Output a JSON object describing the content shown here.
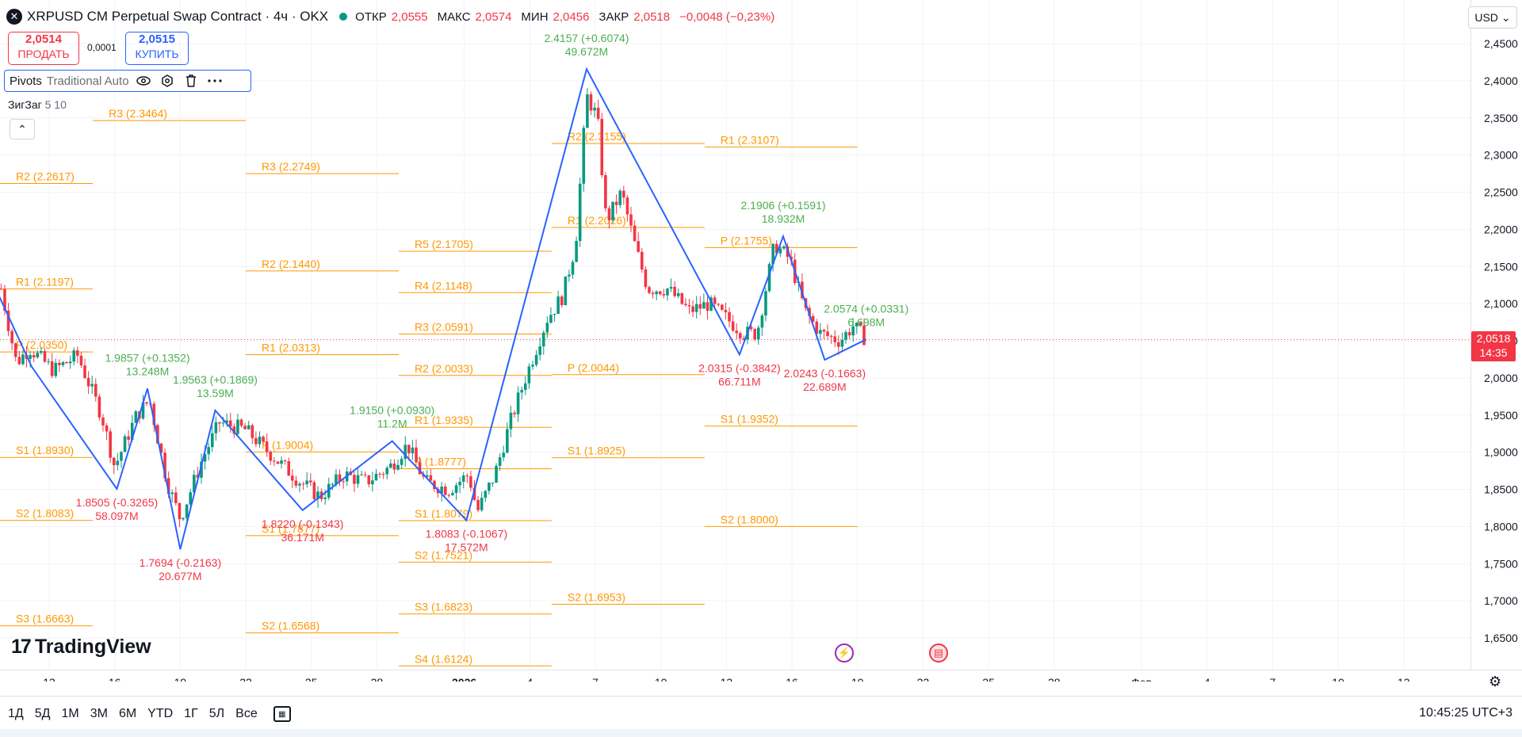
{
  "header": {
    "symbol": "XRPUSD CM Perpetual Swap Contract · 4ч · OKX",
    "ohlc": [
      {
        "label": "ОТКР",
        "value": "2,0555"
      },
      {
        "label": "МАКС",
        "value": "2,0574"
      },
      {
        "label": "МИН",
        "value": "2,0456"
      },
      {
        "label": "ЗАКР",
        "value": "2,0518"
      }
    ],
    "change": "−0,0048 (−0,23%)"
  },
  "trade": {
    "sell_price": "2,0514",
    "sell_label": "ПРОДАТЬ",
    "spread": "0,0001",
    "buy_price": "2,0515",
    "buy_label": "КУПИТЬ"
  },
  "indicators": {
    "pivots_name": "Pivots",
    "pivots_args": "Traditional Auto",
    "zigzag_name": "ЗигЗаг",
    "zigzag_args": "5 10"
  },
  "currency": "USD",
  "current_price": {
    "value": "2,0518",
    "countdown": "14:35"
  },
  "logo": "TradingView",
  "toolbar": {
    "ranges": [
      "1Д",
      "5Д",
      "1М",
      "3М",
      "6М",
      "YTD",
      "1Г",
      "5Л",
      "Все"
    ]
  },
  "clock": "10:45:25 UTC+3",
  "colors": {
    "pivot": "#ff9800",
    "zigzag": "#2962ff",
    "up": "#089981",
    "down": "#f23645",
    "label_up": "#4caf50",
    "label_down": "#f23645",
    "grid": "#f0f3fa"
  },
  "icons": [
    "eye-icon",
    "settings-icon",
    "trash-icon",
    "more-icon",
    "chevron-up-icon",
    "lightning-icon",
    "us-flag-icon",
    "calendar-icon",
    "gear-icon"
  ],
  "chart_data": {
    "type": "candlestick",
    "ylim": [
      1.62,
      2.47
    ],
    "y_ticks": [
      "2,4500",
      "2,4000",
      "2,3500",
      "2,3000",
      "2,2500",
      "2,2000",
      "2,1500",
      "2,1000",
      "2,0500",
      "2,0000",
      "1,9500",
      "1,9000",
      "1,8500",
      "1,8000",
      "1,7500",
      "1,7000",
      "1,6500"
    ],
    "y_tick_values": [
      2.45,
      2.4,
      2.35,
      2.3,
      2.25,
      2.2,
      2.15,
      2.1,
      2.05,
      2.0,
      1.95,
      1.9,
      1.85,
      1.8,
      1.75,
      1.7,
      1.65
    ],
    "x_ticks": [
      {
        "label": "13",
        "day": 0
      },
      {
        "label": "16",
        "day": 3
      },
      {
        "label": "19",
        "day": 6
      },
      {
        "label": "22",
        "day": 9
      },
      {
        "label": "25",
        "day": 12
      },
      {
        "label": "28",
        "day": 15
      },
      {
        "label": "2026",
        "day": 19
      },
      {
        "label": "4",
        "day": 22
      },
      {
        "label": "7",
        "day": 25
      },
      {
        "label": "10",
        "day": 28
      },
      {
        "label": "13",
        "day": 31
      },
      {
        "label": "16",
        "day": 34
      },
      {
        "label": "19",
        "day": 37
      },
      {
        "label": "22",
        "day": 40
      },
      {
        "label": "25",
        "day": 43
      },
      {
        "label": "28",
        "day": 46
      },
      {
        "label": "Фев",
        "day": 50
      },
      {
        "label": "4",
        "day": 53
      },
      {
        "label": "7",
        "day": 56
      },
      {
        "label": "10",
        "day": 59
      },
      {
        "label": "13",
        "day": 62
      }
    ],
    "current_price": 2.0518,
    "close_path": [
      {
        "day": -2.2,
        "price": 2.12
      },
      {
        "day": -1.5,
        "price": 2.02
      },
      {
        "day": -0.9,
        "price": 2.04
      },
      {
        "day": 0.2,
        "price": 2.01
      },
      {
        "day": 1.3,
        "price": 2.03
      },
      {
        "day": 2.4,
        "price": 1.95
      },
      {
        "day": 3.0,
        "price": 1.88
      },
      {
        "day": 4.0,
        "price": 1.95
      },
      {
        "day": 4.6,
        "price": 1.97
      },
      {
        "day": 5.4,
        "price": 1.86
      },
      {
        "day": 6.0,
        "price": 1.81
      },
      {
        "day": 7.0,
        "price": 1.89
      },
      {
        "day": 7.8,
        "price": 1.94
      },
      {
        "day": 9.0,
        "price": 1.93
      },
      {
        "day": 10.4,
        "price": 1.89
      },
      {
        "day": 11.5,
        "price": 1.86
      },
      {
        "day": 12.4,
        "price": 1.84
      },
      {
        "day": 13.5,
        "price": 1.87
      },
      {
        "day": 14.5,
        "price": 1.86
      },
      {
        "day": 15.6,
        "price": 1.88
      },
      {
        "day": 16.4,
        "price": 1.91
      },
      {
        "day": 17.2,
        "price": 1.86
      },
      {
        "day": 18.3,
        "price": 1.85
      },
      {
        "day": 19.2,
        "price": 1.87
      },
      {
        "day": 19.6,
        "price": 1.82
      },
      {
        "day": 20.4,
        "price": 1.87
      },
      {
        "day": 21.1,
        "price": 1.94
      },
      {
        "day": 21.8,
        "price": 2.0
      },
      {
        "day": 22.8,
        "price": 2.08
      },
      {
        "day": 23.5,
        "price": 2.11
      },
      {
        "day": 24.1,
        "price": 2.18
      },
      {
        "day": 24.6,
        "price": 2.38
      },
      {
        "day": 25.1,
        "price": 2.35
      },
      {
        "day": 25.5,
        "price": 2.21
      },
      {
        "day": 26.2,
        "price": 2.25
      },
      {
        "day": 26.8,
        "price": 2.18
      },
      {
        "day": 27.4,
        "price": 2.12
      },
      {
        "day": 28.3,
        "price": 2.12
      },
      {
        "day": 29.3,
        "price": 2.09
      },
      {
        "day": 30.2,
        "price": 2.1
      },
      {
        "day": 31.0,
        "price": 2.08
      },
      {
        "day": 31.8,
        "price": 2.06
      },
      {
        "day": 32.4,
        "price": 2.06
      },
      {
        "day": 33.2,
        "price": 2.18
      },
      {
        "day": 33.9,
        "price": 2.16
      },
      {
        "day": 34.6,
        "price": 2.09
      },
      {
        "day": 35.3,
        "price": 2.06
      },
      {
        "day": 36.2,
        "price": 2.05
      },
      {
        "day": 36.8,
        "price": 2.07
      },
      {
        "day": 37.4,
        "price": 2.0518
      }
    ],
    "zigzag": [
      {
        "day": -2.6,
        "price": 2.13
      },
      {
        "day": -0.8,
        "price": 2.015
      },
      {
        "day": 3.1,
        "price": 1.8505
      },
      {
        "day": 4.5,
        "price": 1.9857
      },
      {
        "day": 6.0,
        "price": 1.7694
      },
      {
        "day": 7.6,
        "price": 1.9563
      },
      {
        "day": 11.6,
        "price": 1.822
      },
      {
        "day": 15.7,
        "price": 1.915
      },
      {
        "day": 19.1,
        "price": 1.8083
      },
      {
        "day": 24.6,
        "price": 2.4157
      },
      {
        "day": 31.6,
        "price": 2.0315
      },
      {
        "day": 33.6,
        "price": 2.1906
      },
      {
        "day": 35.5,
        "price": 2.0243
      },
      {
        "day": 37.4,
        "price": 2.0518
      }
    ],
    "pivot_lines": [
      {
        "label": "R3 (2.3464)",
        "price": 2.3464,
        "x0": 2.0,
        "x1": 9.0
      },
      {
        "label": "R2 (2.2617)",
        "price": 2.2617,
        "x0": -3.0,
        "x1": 2.0
      },
      {
        "label": "R3 (2.2749)",
        "price": 2.2749,
        "x0": 9.0,
        "x1": 16.0
      },
      {
        "label": "R2 (2.1440)",
        "price": 2.144,
        "x0": 9.0,
        "x1": 16.0
      },
      {
        "label": "R1 (2.1197)",
        "price": 2.1197,
        "x0": -3.0,
        "x1": 2.0
      },
      {
        "label": "P (2.0350)",
        "price": 2.035,
        "x0": -3.0,
        "x1": 2.0
      },
      {
        "label": "R1 (2.0313)",
        "price": 2.0313,
        "x0": 9.0,
        "x1": 16.0
      },
      {
        "label": "S1 (1.8930)",
        "price": 1.893,
        "x0": -3.0,
        "x1": 2.0
      },
      {
        "label": "P (1.9004)",
        "price": 1.9004,
        "x0": 9.0,
        "x1": 16.0
      },
      {
        "label": "S2 (1.8083)",
        "price": 1.8083,
        "x0": -3.0,
        "x1": 2.0
      },
      {
        "label": "S1 (1.7877)",
        "price": 1.7877,
        "x0": 9.0,
        "x1": 16.0
      },
      {
        "label": "S3 (1.6663)",
        "price": 1.6663,
        "x0": -3.0,
        "x1": 2.0
      },
      {
        "label": "S2 (1.6568)",
        "price": 1.6568,
        "x0": 9.0,
        "x1": 16.0
      },
      {
        "label": "R5 (2.1705)",
        "price": 2.1705,
        "x0": 16.0,
        "x1": 23.0
      },
      {
        "label": "R4 (2.1148)",
        "price": 2.1148,
        "x0": 16.0,
        "x1": 23.0
      },
      {
        "label": "R3 (2.0591)",
        "price": 2.0591,
        "x0": 16.0,
        "x1": 23.0
      },
      {
        "label": "R2 (2.0033)",
        "price": 2.0033,
        "x0": 16.0,
        "x1": 23.0
      },
      {
        "label": "R1 (1.9335)",
        "price": 1.9335,
        "x0": 16.0,
        "x1": 23.0
      },
      {
        "label": "P (1.8777)",
        "price": 1.8777,
        "x0": 16.0,
        "x1": 23.0
      },
      {
        "label": "S1 (1.8079)",
        "price": 1.8079,
        "x0": 16.0,
        "x1": 23.0
      },
      {
        "label": "S2 (1.7521)",
        "price": 1.7521,
        "x0": 16.0,
        "x1": 23.0
      },
      {
        "label": "S3 (1.6823)",
        "price": 1.6823,
        "x0": 16.0,
        "x1": 23.0
      },
      {
        "label": "S4 (1.6124)",
        "price": 1.6124,
        "x0": 16.0,
        "x1": 23.0
      },
      {
        "label": "R2 (2.3155)",
        "price": 2.3155,
        "x0": 23.0,
        "x1": 30.0
      },
      {
        "label": "R1 (2.2026)",
        "price": 2.2026,
        "x0": 23.0,
        "x1": 30.0
      },
      {
        "label": "P (2.0044)",
        "price": 2.0044,
        "x0": 23.0,
        "x1": 30.0
      },
      {
        "label": "S1 (1.8925)",
        "price": 1.8925,
        "x0": 23.0,
        "x1": 30.0
      },
      {
        "label": "S2 (1.6953)",
        "price": 1.6953,
        "x0": 23.0,
        "x1": 30.0
      },
      {
        "label": "R1 (2.3107)",
        "price": 2.3107,
        "x0": 30.0,
        "x1": 37.0
      },
      {
        "label": "P (2.1755)",
        "price": 2.1755,
        "x0": 30.0,
        "x1": 37.0
      },
      {
        "label": "S1 (1.9352)",
        "price": 1.9352,
        "x0": 30.0,
        "x1": 37.0
      },
      {
        "label": "S2 (1.8000)",
        "price": 1.8,
        "x0": 30.0,
        "x1": 37.0
      }
    ],
    "annotations": [
      {
        "line1": "2.4157 (+0.6074)",
        "line2": "49.672M",
        "day": 24.6,
        "price": 2.4157,
        "dir": "up"
      },
      {
        "line1": "2.1906 (+0.1591)",
        "line2": "18.932M",
        "day": 33.6,
        "price": 2.1906,
        "dir": "up"
      },
      {
        "line1": "2.0574 (+0.0331)",
        "line2": "6.698M",
        "day": 37.4,
        "price": 2.0518,
        "dir": "up"
      },
      {
        "line1": "1.9857 (+0.1352)",
        "line2": "13.248M",
        "day": 4.5,
        "price": 1.9857,
        "dir": "up"
      },
      {
        "line1": "1.9563 (+0.1869)",
        "line2": "13.59M",
        "day": 7.6,
        "price": 1.9563,
        "dir": "up"
      },
      {
        "line1": "1.9150 (+0.0930)",
        "line2": "11.2M",
        "day": 15.7,
        "price": 1.915,
        "dir": "up"
      },
      {
        "line1": "1.8505 (-0.3265)",
        "line2": "58.097M",
        "day": 3.1,
        "price": 1.8505,
        "dir": "down"
      },
      {
        "line1": "1.7694 (-0.2163)",
        "line2": "20.677M",
        "day": 6.0,
        "price": 1.7694,
        "dir": "down"
      },
      {
        "line1": "1.8220 (-0.1343)",
        "line2": "36.171M",
        "day": 11.6,
        "price": 1.822,
        "dir": "down"
      },
      {
        "line1": "1.8083 (-0.1067)",
        "line2": "17.572M",
        "day": 19.1,
        "price": 1.8083,
        "dir": "down"
      },
      {
        "line1": "2.0315 (-0.3842)",
        "line2": "66.711M",
        "day": 31.6,
        "price": 2.0315,
        "dir": "down"
      },
      {
        "line1": "2.0243 (-0.1663)",
        "line2": "22.689M",
        "day": 35.5,
        "price": 2.0243,
        "dir": "down"
      }
    ]
  }
}
